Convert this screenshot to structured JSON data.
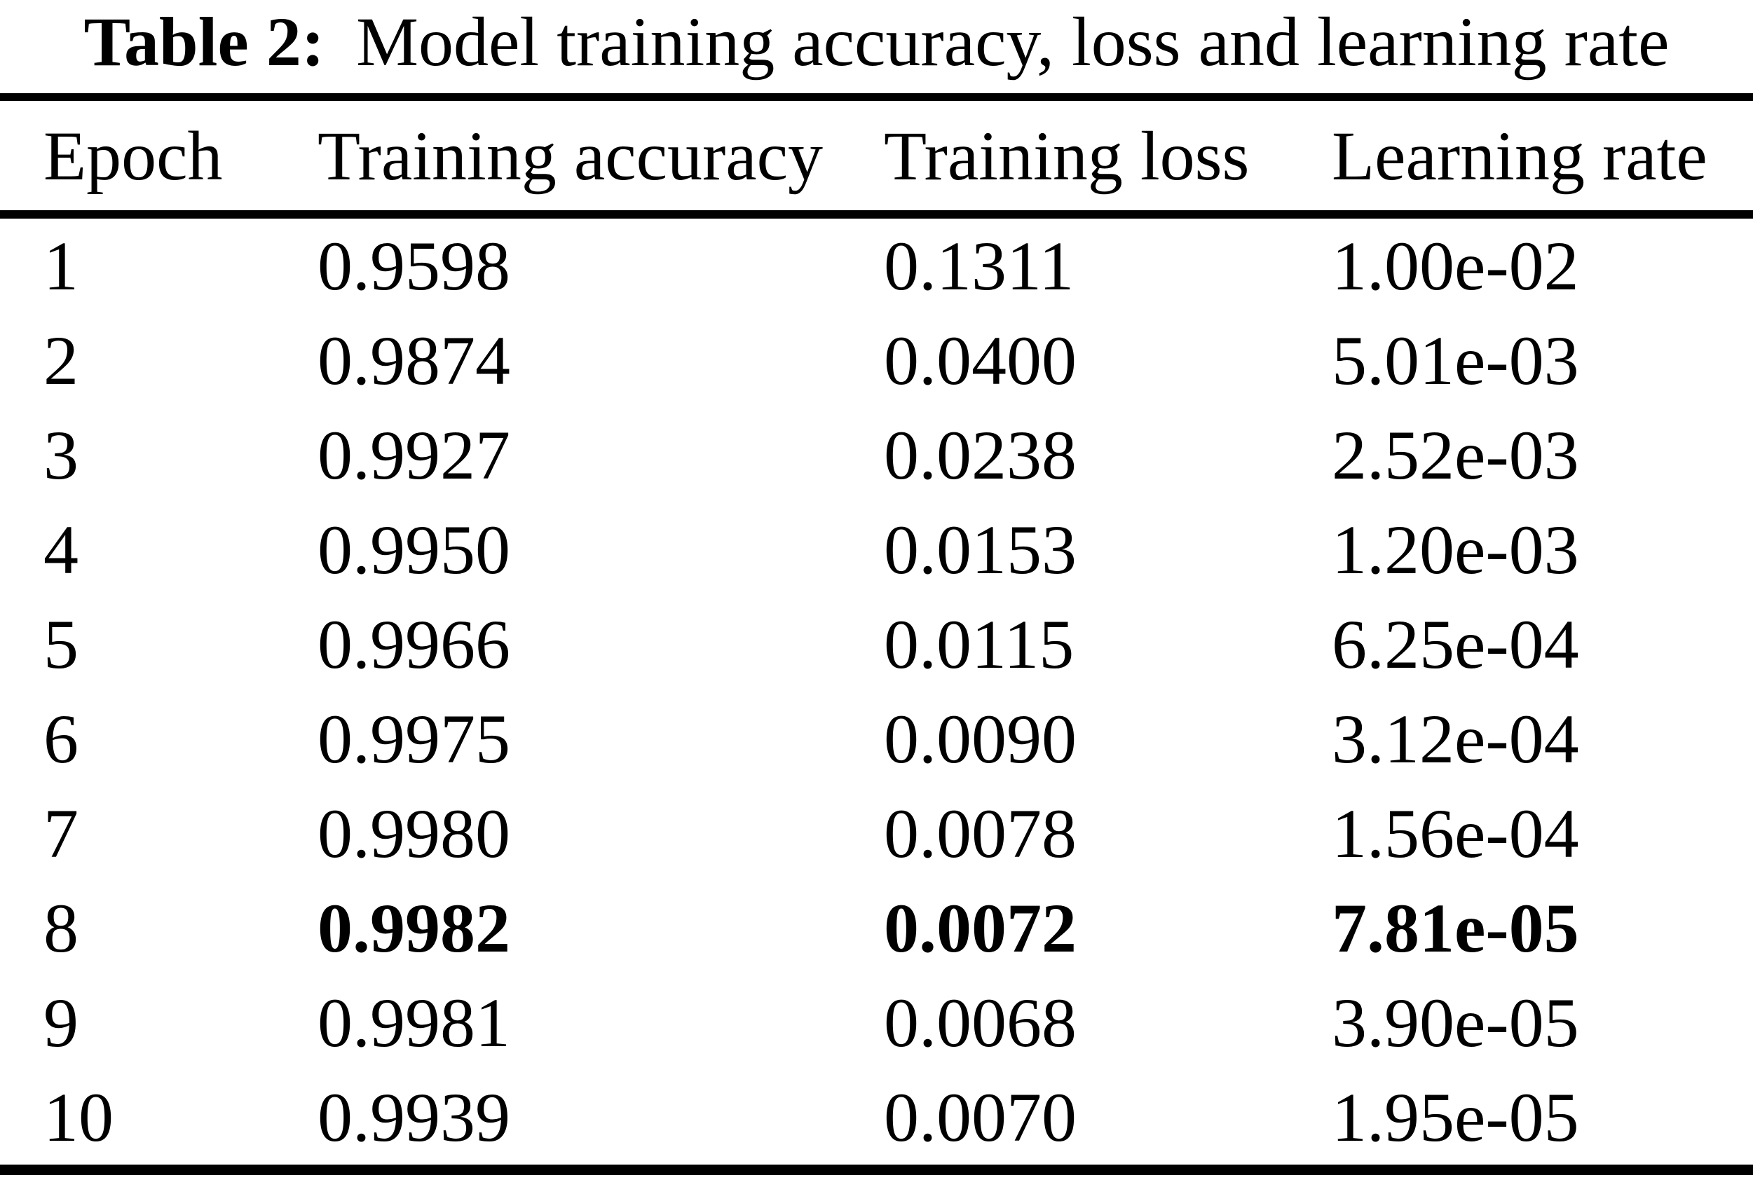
{
  "caption": {
    "label": "Table 2:",
    "text": "Model training accuracy, loss and learning rate"
  },
  "table": {
    "columns": [
      "Epoch",
      "Training accuracy",
      "Training loss",
      "Learning rate"
    ],
    "rows": [
      {
        "epoch": "1",
        "accuracy": "0.9598",
        "loss": "0.1311",
        "lr": "1.00e-02",
        "bold": false
      },
      {
        "epoch": "2",
        "accuracy": "0.9874",
        "loss": "0.0400",
        "lr": "5.01e-03",
        "bold": false
      },
      {
        "epoch": "3",
        "accuracy": "0.9927",
        "loss": "0.0238",
        "lr": "2.52e-03",
        "bold": false
      },
      {
        "epoch": "4",
        "accuracy": "0.9950",
        "loss": "0.0153",
        "lr": "1.20e-03",
        "bold": false
      },
      {
        "epoch": "5",
        "accuracy": "0.9966",
        "loss": "0.0115",
        "lr": "6.25e-04",
        "bold": false
      },
      {
        "epoch": "6",
        "accuracy": "0.9975",
        "loss": "0.0090",
        "lr": "3.12e-04",
        "bold": false
      },
      {
        "epoch": "7",
        "accuracy": "0.9980",
        "loss": "0.0078",
        "lr": "1.56e-04",
        "bold": false
      },
      {
        "epoch": "8",
        "accuracy": "0.9982",
        "loss": "0.0072",
        "lr": "7.81e-05",
        "bold": true
      },
      {
        "epoch": "9",
        "accuracy": "0.9981",
        "loss": "0.0068",
        "lr": "3.90e-05",
        "bold": false
      },
      {
        "epoch": "10",
        "accuracy": "0.9939",
        "loss": "0.0070",
        "lr": "1.95e-05",
        "bold": false
      }
    ]
  },
  "chart_data": {
    "type": "table",
    "title": "Table 2: Model training accuracy, loss and learning rate",
    "columns": [
      "Epoch",
      "Training accuracy",
      "Training loss",
      "Learning rate"
    ],
    "rows": [
      [
        1,
        0.9598,
        0.1311,
        "1.00e-02"
      ],
      [
        2,
        0.9874,
        0.04,
        "5.01e-03"
      ],
      [
        3,
        0.9927,
        0.0238,
        "2.52e-03"
      ],
      [
        4,
        0.995,
        0.0153,
        "1.20e-03"
      ],
      [
        5,
        0.9966,
        0.0115,
        "6.25e-04"
      ],
      [
        6,
        0.9975,
        0.009,
        "3.12e-04"
      ],
      [
        7,
        0.998,
        0.0078,
        "1.56e-04"
      ],
      [
        8,
        0.9982,
        0.0072,
        "7.81e-05"
      ],
      [
        9,
        0.9981,
        0.0068,
        "3.90e-05"
      ],
      [
        10,
        0.9939,
        0.007,
        "1.95e-05"
      ]
    ],
    "highlighted_row_epoch": 8
  },
  "colors": {
    "text": "#000000",
    "background": "#ffffff",
    "rule": "#000000"
  }
}
